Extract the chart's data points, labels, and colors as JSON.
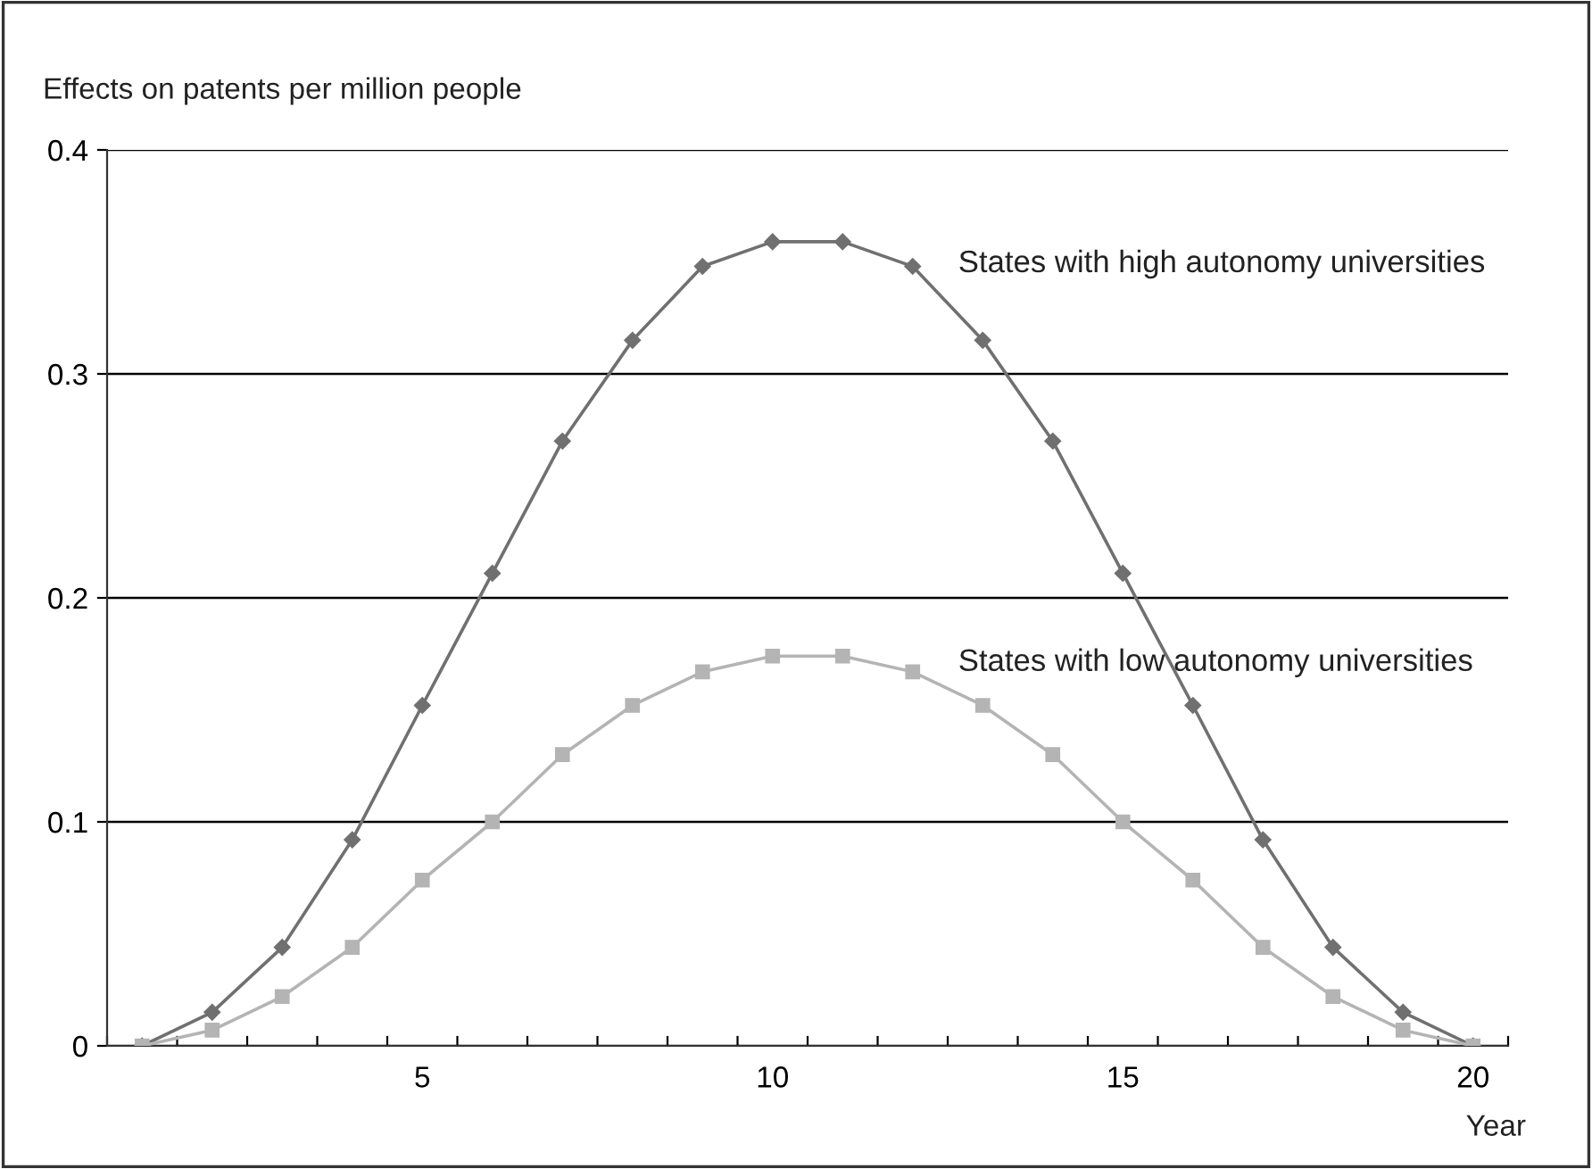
{
  "chart_data": {
    "type": "line",
    "ylabel": "Effects on patents per million people",
    "xlabel": "Year",
    "x": [
      1,
      2,
      3,
      4,
      5,
      6,
      7,
      8,
      9,
      10,
      11,
      12,
      13,
      14,
      15,
      16,
      17,
      18,
      19,
      20
    ],
    "series": [
      {
        "name": "States with high autonomy universities",
        "color": "#707070",
        "marker": "diamond",
        "values": [
          0,
          0.015,
          0.044,
          0.092,
          0.152,
          0.211,
          0.27,
          0.315,
          0.348,
          0.359,
          0.359,
          0.348,
          0.315,
          0.27,
          0.211,
          0.152,
          0.092,
          0.044,
          0.015,
          0
        ]
      },
      {
        "name": "States with low autonomy universities",
        "color": "#b4b4b4",
        "marker": "square",
        "values": [
          0,
          0.007,
          0.022,
          0.044,
          0.074,
          0.1,
          0.13,
          0.152,
          0.167,
          0.174,
          0.174,
          0.167,
          0.152,
          0.13,
          0.1,
          0.074,
          0.044,
          0.022,
          0.007,
          0
        ]
      }
    ],
    "xlim": [
      0.5,
      20.5
    ],
    "xticks": [
      {
        "value": 0.5,
        "label": null
      },
      {
        "value": 1.5,
        "label": null
      },
      {
        "value": 2.5,
        "label": null
      },
      {
        "value": 3.5,
        "label": null
      },
      {
        "value": 4.5,
        "label": null
      },
      5,
      {
        "value": 5.5,
        "label": null
      },
      {
        "value": 6.5,
        "label": null
      },
      {
        "value": 7.5,
        "label": null
      },
      {
        "value": 8.5,
        "label": null
      },
      {
        "value": 9.5,
        "label": null
      },
      10,
      {
        "value": 10.5,
        "label": null
      },
      {
        "value": 11.5,
        "label": null
      },
      {
        "value": 12.5,
        "label": null
      },
      {
        "value": 13.5,
        "label": null
      },
      {
        "value": 14.5,
        "label": null
      },
      15,
      {
        "value": 15.5,
        "label": null
      },
      {
        "value": 16.5,
        "label": null
      },
      {
        "value": 17.5,
        "label": null
      },
      {
        "value": 18.5,
        "label": null
      },
      {
        "value": 19.5,
        "label": null
      },
      20,
      {
        "value": 20.5,
        "label": null
      }
    ],
    "ylim": [
      0,
      0.4
    ],
    "yticks": [
      0,
      0.1,
      0.2,
      0.3,
      0.4
    ],
    "grid": "y",
    "legend": false,
    "line_style": "solid"
  }
}
